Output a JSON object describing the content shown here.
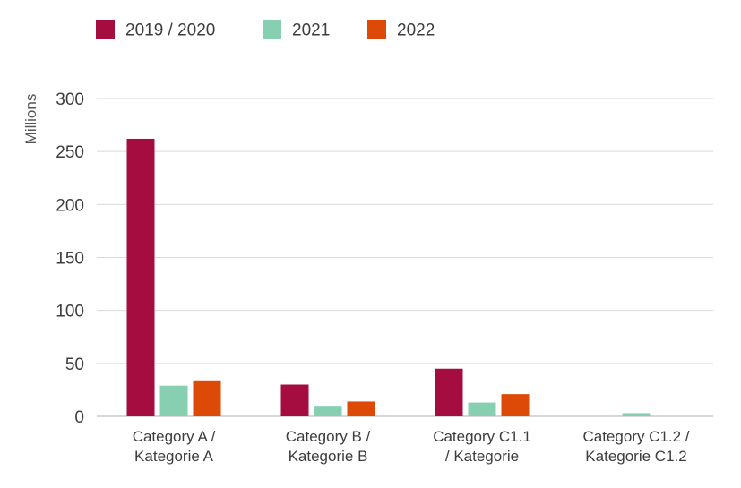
{
  "chart_data": {
    "type": "bar",
    "categories": [
      [
        "Category A /",
        "Kategorie A"
      ],
      [
        "Category B /",
        "Kategorie B"
      ],
      [
        "Category C1.1",
        "/ Kategorie"
      ],
      [
        "Category C1.2 /",
        "Kategorie C1.2"
      ]
    ],
    "series": [
      {
        "name": "2019 / 2020",
        "color": "#a50c3f",
        "values": [
          262,
          30,
          45,
          0
        ]
      },
      {
        "name": "2021",
        "color": "#86cfb0",
        "values": [
          29,
          10,
          13,
          3
        ]
      },
      {
        "name": "2022",
        "color": "#dd4a07",
        "values": [
          34,
          14,
          21,
          0
        ]
      }
    ],
    "ylabel": "Millions",
    "xlabel": "",
    "ylim": [
      0,
      300
    ],
    "yticks": [
      0,
      50,
      100,
      150,
      200,
      250,
      300
    ],
    "grid": true,
    "legend": "top-left"
  }
}
